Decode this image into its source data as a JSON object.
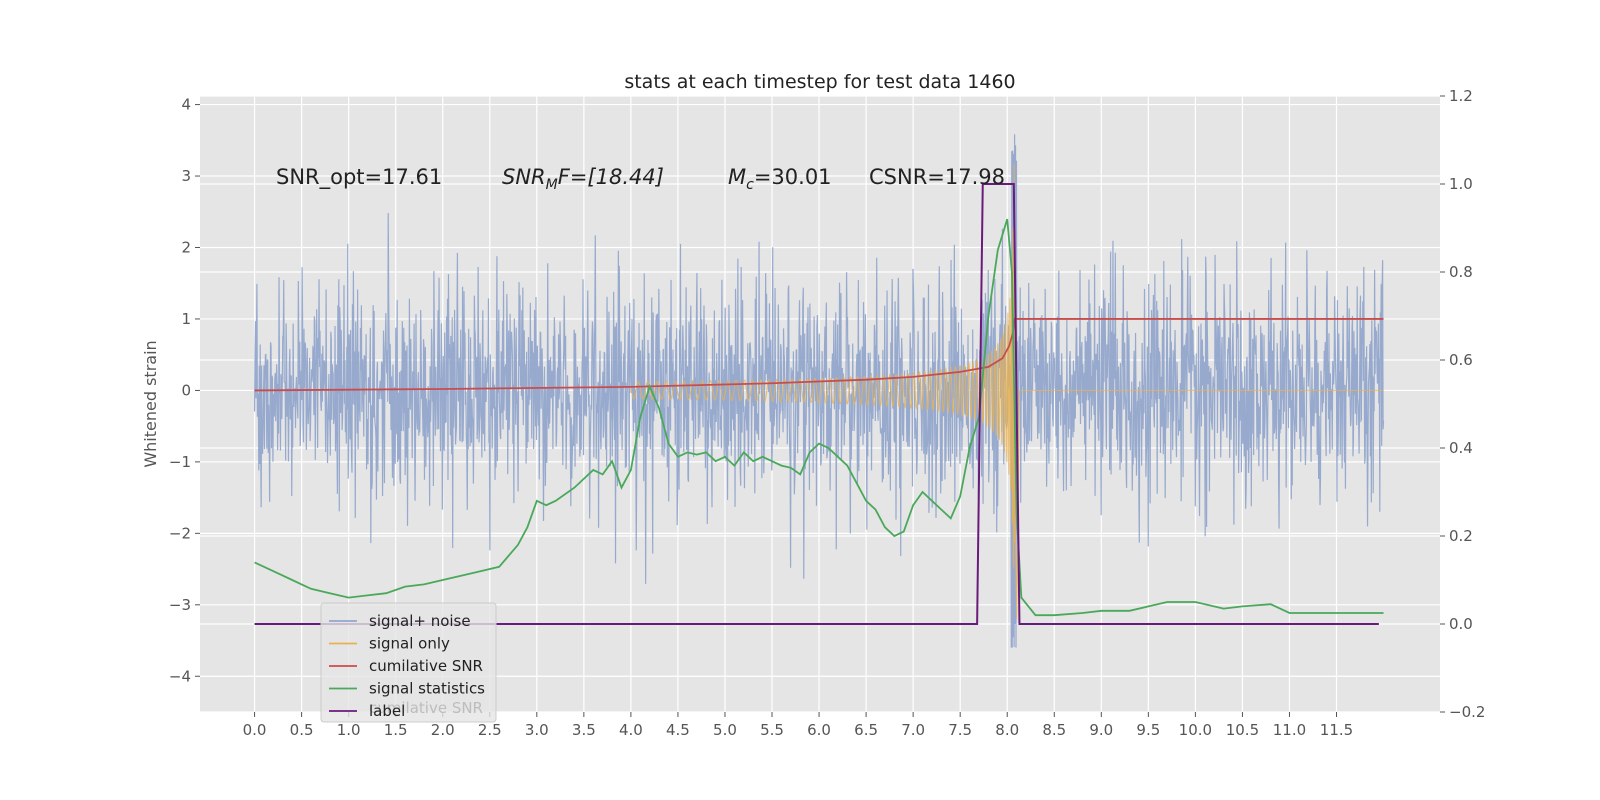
{
  "chart_data": {
    "type": "line",
    "title": "stats at each timestep for test data 1460",
    "ylabel_left": "Whitened strain",
    "ylabel_right": "",
    "xlim": [
      -0.58,
      12.6
    ],
    "ylim_left": [
      -4.5,
      4.12
    ],
    "ylim_right": [
      -0.2,
      1.2
    ],
    "xticks": [
      "0.0",
      "0.5",
      "1.0",
      "1.5",
      "2.0",
      "2.5",
      "3.0",
      "3.5",
      "4.0",
      "4.5",
      "5.0",
      "5.5",
      "6.0",
      "6.5",
      "7.0",
      "7.5",
      "8.0",
      "8.5",
      "9.0",
      "9.5",
      "10.0",
      "10.5",
      "11.0",
      "11.5"
    ],
    "yticks_left": [
      -4,
      -3,
      -2,
      -1,
      0,
      1,
      2,
      3,
      4
    ],
    "yticks_right": [
      "−0.2",
      "0.0",
      "0.2",
      "0.4",
      "0.6",
      "0.8",
      "1.0",
      "1.2"
    ],
    "grid": true,
    "legend_position": "lower-left",
    "annotations": {
      "snr_opt": "SNR_opt=17.61",
      "snr_mf_base": "SNR",
      "snr_mf_sub": "M",
      "snr_mf_rest": "F=[18.44]",
      "mc_base": "M",
      "mc_sub": "c",
      "mc_rest": "=30.01",
      "csnr": "CSNR=17.98"
    },
    "series": [
      {
        "name": "signal+ noise",
        "color": "#92a7cc",
        "axis": "left",
        "duration": 12.0,
        "sigma": 0.75,
        "peak": 3.7
      },
      {
        "name": "signal only",
        "color": "#e6b153",
        "axis": "left",
        "merger_time": 8.08
      },
      {
        "name": "cumilative SNR",
        "color": "#c94c4c",
        "axis": "left",
        "x": [
          0.0,
          2.0,
          4.0,
          5.5,
          6.5,
          7.0,
          7.5,
          7.8,
          7.95,
          8.02,
          8.06,
          8.08,
          8.09,
          12.0
        ],
        "y": [
          0.0,
          0.02,
          0.05,
          0.1,
          0.15,
          0.19,
          0.26,
          0.33,
          0.45,
          0.62,
          0.8,
          1.0,
          1.0,
          1.0
        ]
      },
      {
        "name": "signal statistics",
        "color": "#4aa85a",
        "axis": "right",
        "x": [
          0.0,
          0.1,
          0.2,
          0.3,
          0.4,
          0.5,
          0.6,
          0.8,
          1.0,
          1.2,
          1.4,
          1.6,
          1.8,
          2.0,
          2.2,
          2.4,
          2.6,
          2.8,
          2.9,
          3.0,
          3.1,
          3.2,
          3.4,
          3.6,
          3.7,
          3.8,
          3.9,
          4.0,
          4.1,
          4.2,
          4.3,
          4.4,
          4.5,
          4.6,
          4.7,
          4.8,
          4.9,
          5.0,
          5.1,
          5.2,
          5.3,
          5.4,
          5.5,
          5.6,
          5.7,
          5.8,
          5.9,
          6.0,
          6.1,
          6.2,
          6.3,
          6.4,
          6.5,
          6.6,
          6.7,
          6.8,
          6.9,
          7.0,
          7.1,
          7.2,
          7.3,
          7.4,
          7.5,
          7.6,
          7.7,
          7.8,
          7.9,
          8.0,
          8.05,
          8.1,
          8.15,
          8.3,
          8.5,
          8.8,
          9.0,
          9.3,
          9.5,
          9.7,
          10.0,
          10.3,
          10.5,
          10.8,
          11.0,
          11.5,
          11.8,
          12.0
        ],
        "y": [
          0.14,
          0.13,
          0.12,
          0.11,
          0.1,
          0.09,
          0.08,
          0.07,
          0.06,
          0.065,
          0.07,
          0.085,
          0.09,
          0.1,
          0.11,
          0.12,
          0.13,
          0.18,
          0.22,
          0.28,
          0.27,
          0.28,
          0.31,
          0.35,
          0.34,
          0.37,
          0.31,
          0.35,
          0.47,
          0.54,
          0.49,
          0.41,
          0.38,
          0.39,
          0.385,
          0.39,
          0.37,
          0.38,
          0.36,
          0.39,
          0.37,
          0.38,
          0.37,
          0.36,
          0.355,
          0.34,
          0.39,
          0.41,
          0.4,
          0.38,
          0.36,
          0.32,
          0.28,
          0.26,
          0.22,
          0.2,
          0.21,
          0.27,
          0.3,
          0.28,
          0.26,
          0.24,
          0.29,
          0.4,
          0.47,
          0.7,
          0.85,
          0.92,
          0.8,
          0.25,
          0.06,
          0.02,
          0.02,
          0.025,
          0.03,
          0.03,
          0.04,
          0.05,
          0.05,
          0.035,
          0.04,
          0.045,
          0.025,
          0.025,
          0.025,
          0.025
        ]
      },
      {
        "name": "label",
        "color": "#6a1b7a",
        "axis": "right",
        "x": [
          0.0,
          7.68,
          7.74,
          8.07,
          8.13,
          11.95
        ],
        "y": [
          0.0,
          0.0,
          1.0,
          1.0,
          0.0,
          0.0
        ]
      }
    ],
    "legend_ghost_text": "cumilative SNR"
  }
}
